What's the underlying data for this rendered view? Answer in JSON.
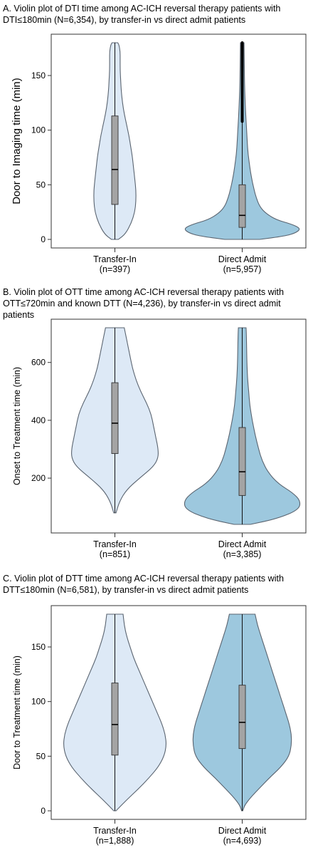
{
  "chart_data": [
    {
      "type": "violin",
      "title": "A. Violin plot of DTI time among AC-ICH reversal therapy patients with DTI≤180min (N=6,354), by transfer-in vs direct admit patients",
      "ylabel": "Door to Imaging time (min)",
      "ylim": [
        0,
        180
      ],
      "yticks": [
        0,
        50,
        100,
        150
      ],
      "grid": false,
      "categories": [
        "Transfer-In",
        "Direct Admit"
      ],
      "category_n": [
        "(n=397)",
        "(n=5,957)"
      ],
      "colors": [
        "#dde9f6",
        "#9dc8de"
      ],
      "series": [
        {
          "category": "Transfer-In",
          "median": 64,
          "q1": 32,
          "q3": 113,
          "min": 0,
          "max": 180,
          "density_y": [
            0,
            5,
            15,
            25,
            35,
            45,
            55,
            65,
            75,
            85,
            95,
            105,
            115,
            125,
            135,
            145,
            155,
            165,
            172,
            178,
            180
          ],
          "density_w": [
            0.06,
            0.18,
            0.28,
            0.34,
            0.36,
            0.36,
            0.34,
            0.32,
            0.3,
            0.27,
            0.24,
            0.2,
            0.16,
            0.13,
            0.11,
            0.1,
            0.09,
            0.09,
            0.09,
            0.07,
            0.05
          ]
        },
        {
          "category": "Direct Admit",
          "median": 22,
          "q1": 11,
          "q3": 50,
          "min": 0,
          "max": 180,
          "density_y": [
            0,
            3,
            6,
            10,
            14,
            18,
            24,
            30,
            38,
            46,
            56,
            66,
            78,
            90,
            105,
            120,
            140,
            160,
            180
          ],
          "density_w": [
            0.3,
            0.72,
            0.92,
            1.0,
            0.84,
            0.58,
            0.4,
            0.3,
            0.24,
            0.2,
            0.16,
            0.13,
            0.1,
            0.085,
            0.07,
            0.055,
            0.04,
            0.035,
            0.03
          ]
        }
      ]
    },
    {
      "type": "violin",
      "title": "B. Violin plot of OTT time among AC-ICH reversal therapy patients with OTT≤720min and known DTT (N=4,236), by transfer-in vs direct admit patients",
      "ylabel": "Onset to Treatment time (min)",
      "ylim": [
        40,
        720
      ],
      "yticks": [
        200,
        400,
        600
      ],
      "grid": false,
      "categories": [
        "Transfer-In",
        "Direct Admit"
      ],
      "category_n": [
        "(n=851)",
        "(n=3,385)"
      ],
      "colors": [
        "#dde9f6",
        "#9dc8de"
      ],
      "series": [
        {
          "category": "Transfer-In",
          "median": 390,
          "q1": 285,
          "q3": 530,
          "min": 80,
          "max": 720,
          "density_y": [
            80,
            120,
            160,
            200,
            240,
            270,
            300,
            340,
            380,
            420,
            460,
            500,
            540,
            580,
            620,
            660,
            700,
            720
          ],
          "density_w": [
            0.02,
            0.08,
            0.2,
            0.42,
            0.66,
            0.74,
            0.74,
            0.7,
            0.66,
            0.62,
            0.54,
            0.44,
            0.36,
            0.3,
            0.26,
            0.22,
            0.18,
            0.16
          ]
        },
        {
          "category": "Direct Admit",
          "median": 222,
          "q1": 140,
          "q3": 375,
          "min": 40,
          "max": 720,
          "density_y": [
            40,
            60,
            90,
            120,
            150,
            180,
            220,
            260,
            300,
            350,
            400,
            450,
            500,
            550,
            600,
            650,
            700,
            720
          ],
          "density_w": [
            0.14,
            0.6,
            0.96,
            1.0,
            0.86,
            0.62,
            0.44,
            0.34,
            0.28,
            0.22,
            0.17,
            0.13,
            0.11,
            0.09,
            0.08,
            0.075,
            0.07,
            0.065
          ]
        }
      ]
    },
    {
      "type": "violin",
      "title": "C. Violin plot of DTT time among AC-ICH reversal therapy patients with DTT≤180min (N=6,581), by transfer-in vs direct admit patients",
      "ylabel": "Door to Treatment time (min)",
      "ylim": [
        0,
        180
      ],
      "yticks": [
        0,
        50,
        100,
        150
      ],
      "grid": false,
      "categories": [
        "Transfer-In",
        "Direct Admit"
      ],
      "category_n": [
        "(n=1,888)",
        "(n=4,693)"
      ],
      "colors": [
        "#dde9f6",
        "#9dc8de"
      ],
      "series": [
        {
          "category": "Transfer-In",
          "median": 79,
          "q1": 51,
          "q3": 117,
          "min": 0,
          "max": 180,
          "density_y": [
            0,
            10,
            20,
            30,
            40,
            50,
            60,
            70,
            80,
            90,
            100,
            110,
            120,
            130,
            140,
            150,
            160,
            170,
            180
          ],
          "density_w": [
            0.02,
            0.2,
            0.4,
            0.58,
            0.74,
            0.84,
            0.88,
            0.86,
            0.8,
            0.72,
            0.64,
            0.56,
            0.48,
            0.4,
            0.32,
            0.26,
            0.2,
            0.16,
            0.14
          ]
        },
        {
          "category": "Direct Admit",
          "median": 81,
          "q1": 57,
          "q3": 115,
          "min": 0,
          "max": 180,
          "density_y": [
            0,
            5,
            12,
            20,
            30,
            40,
            50,
            60,
            70,
            80,
            90,
            100,
            110,
            120,
            130,
            140,
            150,
            160,
            170,
            180
          ],
          "density_w": [
            0.01,
            0.04,
            0.14,
            0.28,
            0.46,
            0.66,
            0.8,
            0.84,
            0.84,
            0.8,
            0.74,
            0.68,
            0.62,
            0.56,
            0.5,
            0.44,
            0.38,
            0.32,
            0.26,
            0.22
          ]
        }
      ]
    }
  ]
}
